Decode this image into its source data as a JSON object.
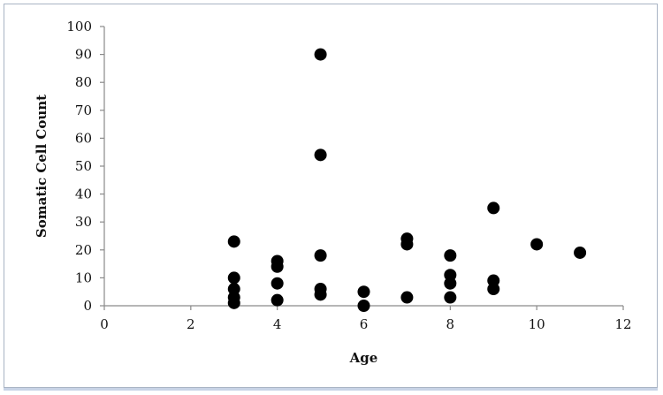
{
  "chart_data": {
    "type": "scatter",
    "title": "",
    "xlabel": "Age",
    "ylabel": "Somatic Cell Count",
    "xlim": [
      0,
      12
    ],
    "ylim": [
      0,
      100
    ],
    "x_ticks": [
      0,
      2,
      4,
      6,
      8,
      10,
      12
    ],
    "y_ticks": [
      0,
      10,
      20,
      30,
      40,
      50,
      60,
      70,
      80,
      90,
      100
    ],
    "grid": false,
    "legend": "none",
    "marker_color": "#000000",
    "points": [
      {
        "x": 3,
        "y": 23
      },
      {
        "x": 3,
        "y": 10
      },
      {
        "x": 3,
        "y": 6
      },
      {
        "x": 3,
        "y": 3
      },
      {
        "x": 3,
        "y": 1
      },
      {
        "x": 4,
        "y": 16
      },
      {
        "x": 4,
        "y": 14
      },
      {
        "x": 4,
        "y": 8
      },
      {
        "x": 4,
        "y": 2
      },
      {
        "x": 5,
        "y": 90
      },
      {
        "x": 5,
        "y": 54
      },
      {
        "x": 5,
        "y": 18
      },
      {
        "x": 5,
        "y": 6
      },
      {
        "x": 5,
        "y": 4
      },
      {
        "x": 6,
        "y": 5
      },
      {
        "x": 6,
        "y": 0
      },
      {
        "x": 7,
        "y": 24
      },
      {
        "x": 7,
        "y": 22
      },
      {
        "x": 7,
        "y": 3
      },
      {
        "x": 8,
        "y": 18
      },
      {
        "x": 8,
        "y": 11
      },
      {
        "x": 8,
        "y": 8
      },
      {
        "x": 8,
        "y": 3
      },
      {
        "x": 9,
        "y": 35
      },
      {
        "x": 9,
        "y": 9
      },
      {
        "x": 9,
        "y": 6
      },
      {
        "x": 10,
        "y": 22
      },
      {
        "x": 11,
        "y": 19
      }
    ]
  }
}
